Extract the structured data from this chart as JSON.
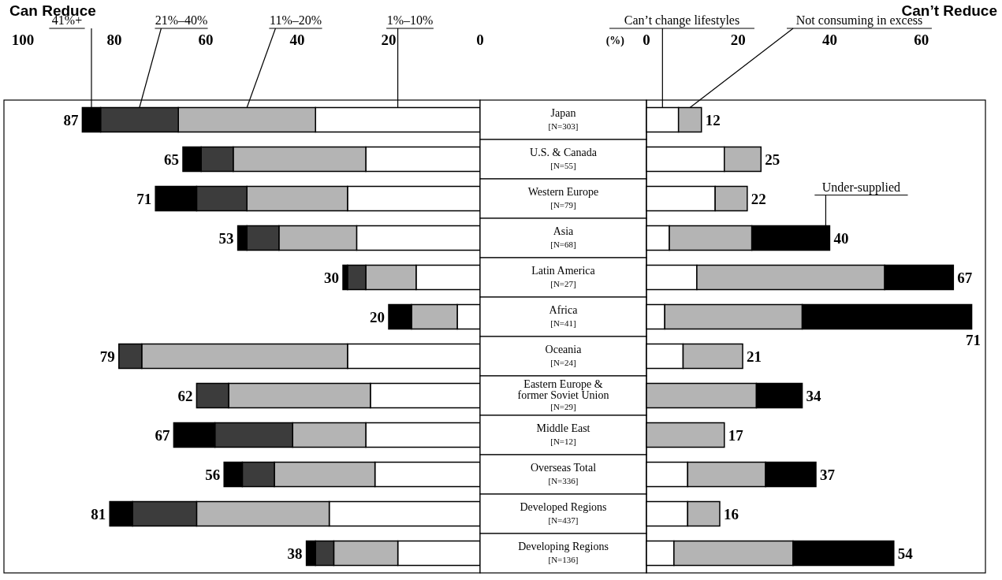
{
  "chart_data": [
    {
      "type": "bar",
      "orientation": "horizontal",
      "stacked": true,
      "title": "Can Reduce",
      "categories": [
        "Japan\n[N=303]",
        "U.S. & Canada\n[N=55]",
        "Western Europe\n[N=79]",
        "Asia\n[N=68]",
        "Latin America\n[N=27]",
        "Africa\n[N=41]",
        "Oceania\n[N=24]",
        "Eastern Europe &\nformer Soviet Union\n[N=29]",
        "Middle East\n[N=12]",
        "Overseas Total\n[N=336]",
        "Developed Regions\n[N=437]",
        "Developing Regions\n[N=136]"
      ],
      "xlim": [
        100,
        0
      ],
      "xticks": [
        100,
        80,
        60,
        40,
        20,
        0
      ],
      "series": [
        {
          "name": "1%–10%",
          "color": "#ffffff",
          "values": [
            36,
            25,
            29,
            27,
            14,
            5,
            29,
            24,
            25,
            23,
            33,
            18
          ]
        },
        {
          "name": "11%–20%",
          "color": "#b4b4b4",
          "values": [
            30,
            29,
            22,
            17,
            11,
            10,
            45,
            31,
            16,
            22,
            29,
            14
          ]
        },
        {
          "name": "21%–40%",
          "color": "#3c3c3c",
          "values": [
            17,
            7,
            11,
            7,
            4,
            0,
            5,
            7,
            17,
            7,
            14,
            4
          ]
        },
        {
          "name": "41%+",
          "color": "#000000",
          "values": [
            4,
            4,
            9,
            2,
            1,
            5,
            0,
            0,
            9,
            4,
            5,
            2
          ]
        }
      ],
      "totals": [
        "87",
        "65",
        "71",
        "53",
        "30",
        "20",
        "79",
        "62",
        "67",
        "56",
        "81",
        "38"
      ]
    },
    {
      "type": "bar",
      "orientation": "horizontal",
      "stacked": true,
      "title": "Can’t Reduce",
      "xlabel": "(%)",
      "tick_labels": "x",
      "categories": [
        null,
        null,
        null,
        null,
        null,
        null,
        null,
        null,
        null,
        null,
        null,
        null
      ],
      "xlim": [
        0,
        74
      ],
      "xticks": [
        0,
        20,
        40,
        60
      ],
      "series": [
        {
          "name": "Can’t change lifestyles",
          "color": "#ffffff",
          "values": [
            7,
            17,
            15,
            5,
            11,
            4,
            8,
            0,
            0,
            9,
            9,
            6
          ]
        },
        {
          "name": "Not consuming in excess",
          "color": "#b4b4b4",
          "values": [
            5,
            8,
            7,
            18,
            41,
            30,
            13,
            24,
            17,
            17,
            7,
            26
          ]
        },
        {
          "name": "Under-supplied",
          "color": "#000000",
          "values": [
            0,
            0,
            0,
            17,
            15,
            37,
            0,
            10,
            0,
            11,
            0,
            22
          ]
        }
      ],
      "totals": [
        "12",
        "25",
        "22",
        "40",
        "67",
        "71",
        "21",
        "34",
        "17",
        "37",
        "16",
        "54"
      ]
    }
  ]
}
